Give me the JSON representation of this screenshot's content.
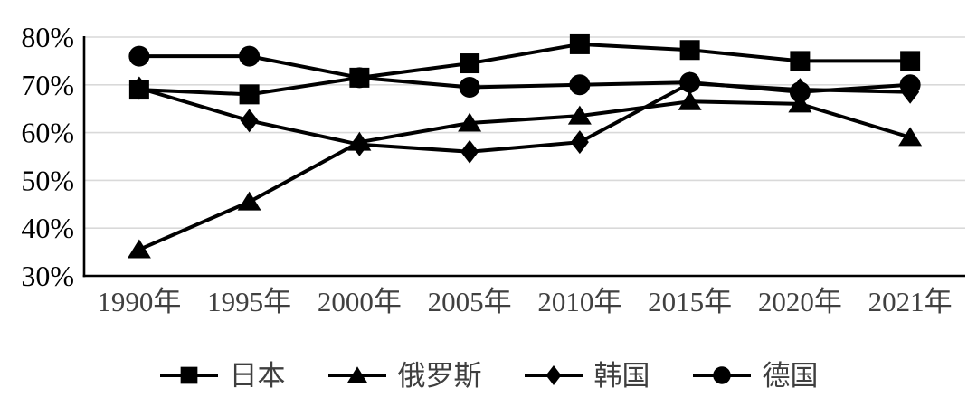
{
  "chart_data": {
    "type": "line",
    "title": "",
    "xlabel": "",
    "ylabel": "",
    "categories": [
      "1990年",
      "1995年",
      "2000年",
      "2005年",
      "2010年",
      "2015年",
      "2020年",
      "2021年"
    ],
    "y_ticks": [
      "80%",
      "70%",
      "60%",
      "50%",
      "40%",
      "30%"
    ],
    "ylim": [
      30,
      80
    ],
    "y_step": 10,
    "grid": true,
    "legend_position": "bottom",
    "series": [
      {
        "name": "日本",
        "key": "japan",
        "marker": "square",
        "values": [
          69,
          68,
          71.5,
          74.5,
          78.5,
          77.3,
          75,
          75
        ]
      },
      {
        "name": "俄罗斯",
        "key": "russia",
        "marker": "triangle",
        "values": [
          35.5,
          45.5,
          58,
          62,
          63.5,
          66.5,
          66,
          59
        ]
      },
      {
        "name": "韩国",
        "key": "korea",
        "marker": "diamond",
        "values": [
          69.3,
          62.5,
          57.5,
          56,
          58,
          70.3,
          69,
          68.5
        ]
      },
      {
        "name": "德国",
        "key": "germany",
        "marker": "circle",
        "values": [
          76,
          76,
          71.5,
          69.5,
          70,
          70.5,
          68.5,
          70
        ]
      }
    ],
    "colors": {
      "series_line": "#000000",
      "marker_fill": "#000000",
      "grid_line": "#d9d9d9",
      "axis_line": "#000000",
      "y_tick_label": "#000000",
      "x_tick_label": "#404040",
      "legend_text": "#3f3f3f",
      "background": "#ffffff"
    }
  }
}
